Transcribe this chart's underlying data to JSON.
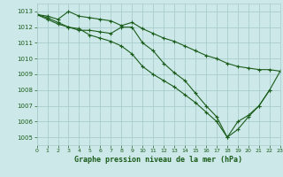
{
  "background_color": "#cce8e8",
  "grid_color": "#aacccc",
  "line_color": "#1a5c1a",
  "title": "Graphe pression niveau de la mer (hPa)",
  "xlim": [
    0,
    23
  ],
  "ylim": [
    1004.5,
    1013.5
  ],
  "yticks": [
    1005,
    1006,
    1007,
    1008,
    1009,
    1010,
    1011,
    1012,
    1013
  ],
  "xticks": [
    0,
    1,
    2,
    3,
    4,
    5,
    6,
    7,
    8,
    9,
    10,
    11,
    12,
    13,
    14,
    15,
    16,
    17,
    18,
    19,
    20,
    21,
    22,
    23
  ],
  "series": [
    {
      "x": [
        0,
        1,
        2,
        3,
        4,
        5,
        6,
        7,
        8,
        9,
        10,
        11,
        12,
        13,
        14,
        15,
        16,
        17,
        18,
        19,
        20,
        21,
        22,
        23
      ],
      "y": [
        1012.8,
        1012.7,
        1012.5,
        1013.0,
        1012.7,
        1012.6,
        1012.5,
        1012.4,
        1012.1,
        1012.3,
        1011.9,
        1011.6,
        1011.3,
        1011.1,
        1010.8,
        1010.5,
        1010.2,
        1010.0,
        1009.7,
        1009.5,
        1009.4,
        1009.3,
        1009.3,
        1009.2
      ]
    },
    {
      "x": [
        0,
        1,
        2,
        3,
        4,
        5,
        6,
        7,
        8,
        9,
        10,
        11,
        12,
        13,
        14,
        15,
        16,
        17,
        18,
        19,
        20,
        21,
        22,
        23
      ],
      "y": [
        1012.8,
        1012.6,
        1012.3,
        1012.0,
        1011.8,
        1011.8,
        1011.7,
        1011.6,
        1012.0,
        1012.0,
        1011.0,
        1010.5,
        1009.7,
        1009.1,
        1008.6,
        1007.8,
        1007.0,
        1006.3,
        1005.0,
        1006.0,
        1006.4,
        1007.0,
        1008.0,
        1009.2
      ]
    },
    {
      "x": [
        0,
        1,
        2,
        3,
        4,
        5,
        6,
        7,
        8,
        9,
        10,
        11,
        12,
        13,
        14,
        15,
        16,
        17,
        18,
        19,
        20,
        21,
        22
      ],
      "y": [
        1012.8,
        1012.5,
        1012.2,
        1012.0,
        1011.9,
        1011.5,
        1011.3,
        1011.1,
        1010.8,
        1010.3,
        1009.5,
        1009.0,
        1008.6,
        1008.2,
        1007.7,
        1007.2,
        1006.6,
        1006.0,
        1005.0,
        1005.5,
        1006.3,
        1007.0,
        1008.0
      ]
    }
  ]
}
